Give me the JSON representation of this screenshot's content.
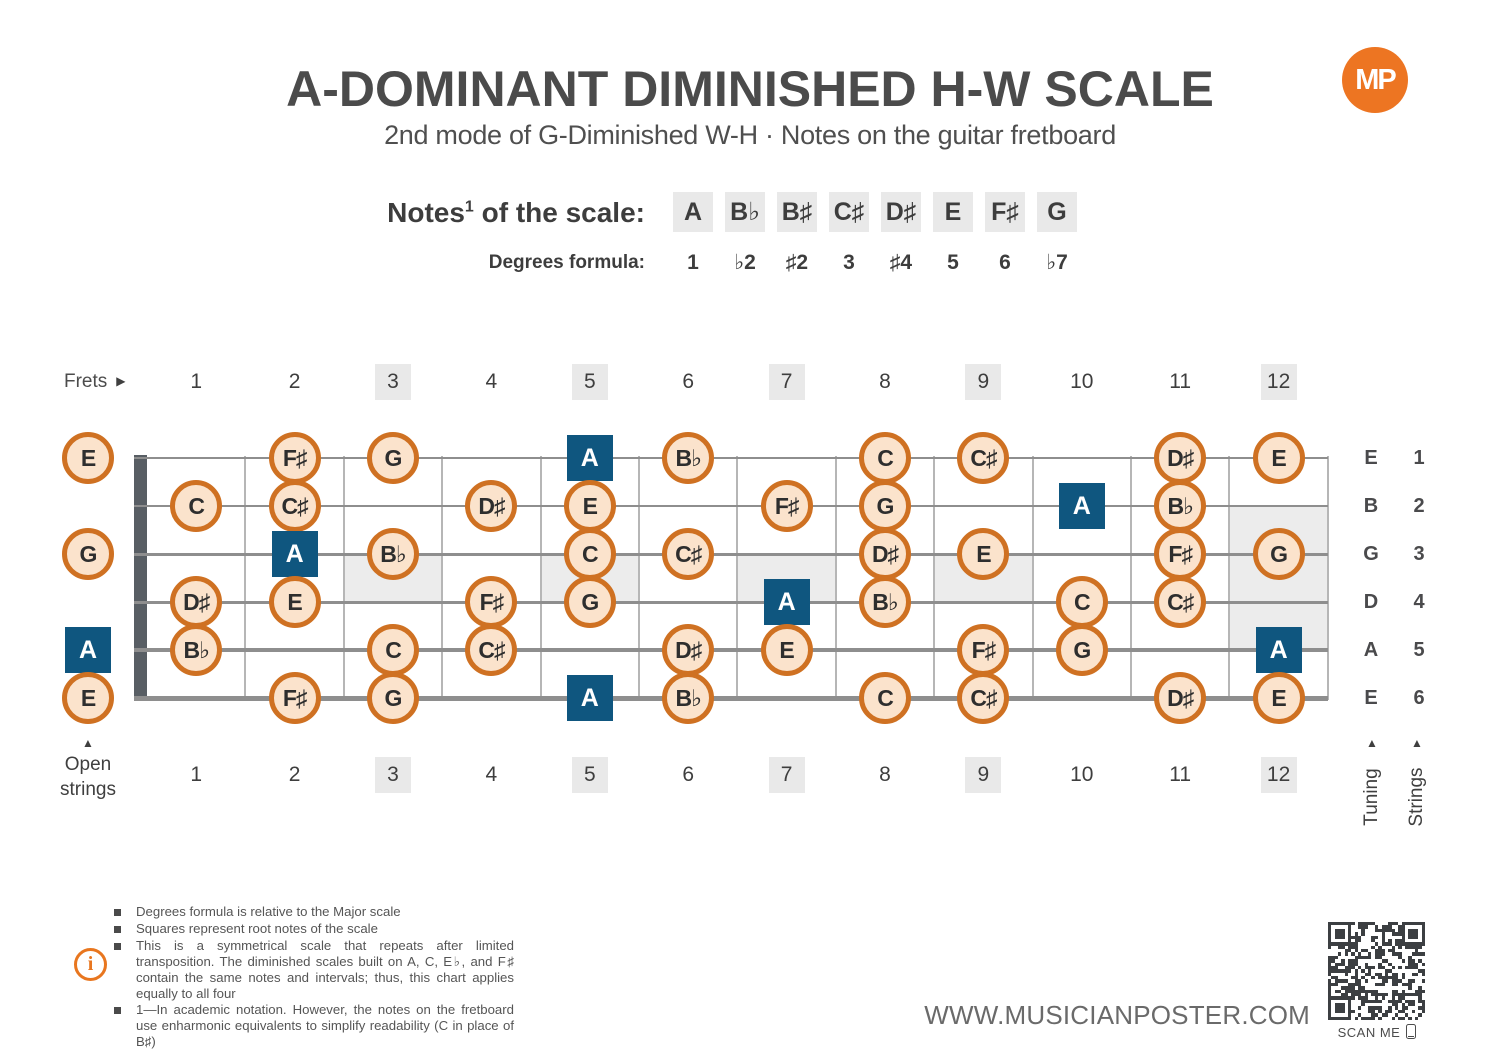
{
  "colors": {
    "accent_orange": "#ed7522",
    "note_circle_border": "#cf7122",
    "note_circle_fill": "#fbe3cc",
    "root_square_blue": "#0f567f",
    "marker_box_gray": "#e9e9e9",
    "inlay_gray": "#ececec",
    "text_dark": "#4b4b4b"
  },
  "header": {
    "title": "A-DOMINANT DIMINISHED H-W SCALE",
    "subtitle": "2nd mode of G-Diminished W-H · Notes on the guitar fretboard",
    "logo_text": "MP"
  },
  "scale": {
    "notes_label_pre": "Notes",
    "notes_label_sup": "1",
    "notes_label_post": " of the scale:",
    "degrees_label": "Degrees formula:",
    "notes": [
      "A",
      "B♭",
      "B♯",
      "C♯",
      "D♯",
      "E",
      "F♯",
      "G"
    ],
    "degrees": [
      "1",
      "♭2",
      "♯2",
      "3",
      "♯4",
      "5",
      "6",
      "♭7"
    ]
  },
  "fretboard": {
    "frets_label": "Frets",
    "fret_numbers": [
      "1",
      "2",
      "3",
      "4",
      "5",
      "6",
      "7",
      "8",
      "9",
      "10",
      "11",
      "12"
    ],
    "marker_frets": [
      3,
      5,
      7,
      9,
      12
    ],
    "inlay_frets_single": [
      3,
      5,
      7,
      9
    ],
    "inlay_fret_double": 12,
    "open_label_line1": "Open",
    "open_label_line2": "strings",
    "tuning_label": "Tuning",
    "strings_label": "Strings",
    "strings": [
      {
        "tuning": "E",
        "number": "1"
      },
      {
        "tuning": "B",
        "number": "2"
      },
      {
        "tuning": "G",
        "number": "3"
      },
      {
        "tuning": "D",
        "number": "4"
      },
      {
        "tuning": "A",
        "number": "5"
      },
      {
        "tuning": "E",
        "number": "6"
      }
    ],
    "notes": [
      {
        "string": 1,
        "fret": 0,
        "label": "E",
        "root": false
      },
      {
        "string": 1,
        "fret": 2,
        "label": "F♯",
        "root": false
      },
      {
        "string": 1,
        "fret": 3,
        "label": "G",
        "root": false
      },
      {
        "string": 1,
        "fret": 5,
        "label": "A",
        "root": true
      },
      {
        "string": 1,
        "fret": 6,
        "label": "B♭",
        "root": false
      },
      {
        "string": 1,
        "fret": 8,
        "label": "C",
        "root": false
      },
      {
        "string": 1,
        "fret": 9,
        "label": "C♯",
        "root": false
      },
      {
        "string": 1,
        "fret": 11,
        "label": "D♯",
        "root": false
      },
      {
        "string": 1,
        "fret": 12,
        "label": "E",
        "root": false
      },
      {
        "string": 2,
        "fret": 1,
        "label": "C",
        "root": false
      },
      {
        "string": 2,
        "fret": 2,
        "label": "C♯",
        "root": false
      },
      {
        "string": 2,
        "fret": 4,
        "label": "D♯",
        "root": false
      },
      {
        "string": 2,
        "fret": 5,
        "label": "E",
        "root": false
      },
      {
        "string": 2,
        "fret": 7,
        "label": "F♯",
        "root": false
      },
      {
        "string": 2,
        "fret": 8,
        "label": "G",
        "root": false
      },
      {
        "string": 2,
        "fret": 10,
        "label": "A",
        "root": true
      },
      {
        "string": 2,
        "fret": 11,
        "label": "B♭",
        "root": false
      },
      {
        "string": 3,
        "fret": 0,
        "label": "G",
        "root": false
      },
      {
        "string": 3,
        "fret": 2,
        "label": "A",
        "root": true
      },
      {
        "string": 3,
        "fret": 3,
        "label": "B♭",
        "root": false
      },
      {
        "string": 3,
        "fret": 5,
        "label": "C",
        "root": false
      },
      {
        "string": 3,
        "fret": 6,
        "label": "C♯",
        "root": false
      },
      {
        "string": 3,
        "fret": 8,
        "label": "D♯",
        "root": false
      },
      {
        "string": 3,
        "fret": 9,
        "label": "E",
        "root": false
      },
      {
        "string": 3,
        "fret": 11,
        "label": "F♯",
        "root": false
      },
      {
        "string": 3,
        "fret": 12,
        "label": "G",
        "root": false
      },
      {
        "string": 4,
        "fret": 1,
        "label": "D♯",
        "root": false
      },
      {
        "string": 4,
        "fret": 2,
        "label": "E",
        "root": false
      },
      {
        "string": 4,
        "fret": 4,
        "label": "F♯",
        "root": false
      },
      {
        "string": 4,
        "fret": 5,
        "label": "G",
        "root": false
      },
      {
        "string": 4,
        "fret": 7,
        "label": "A",
        "root": true
      },
      {
        "string": 4,
        "fret": 8,
        "label": "B♭",
        "root": false
      },
      {
        "string": 4,
        "fret": 10,
        "label": "C",
        "root": false
      },
      {
        "string": 4,
        "fret": 11,
        "label": "C♯",
        "root": false
      },
      {
        "string": 5,
        "fret": 0,
        "label": "A",
        "root": true
      },
      {
        "string": 5,
        "fret": 1,
        "label": "B♭",
        "root": false
      },
      {
        "string": 5,
        "fret": 3,
        "label": "C",
        "root": false
      },
      {
        "string": 5,
        "fret": 4,
        "label": "C♯",
        "root": false
      },
      {
        "string": 5,
        "fret": 6,
        "label": "D♯",
        "root": false
      },
      {
        "string": 5,
        "fret": 7,
        "label": "E",
        "root": false
      },
      {
        "string": 5,
        "fret": 9,
        "label": "F♯",
        "root": false
      },
      {
        "string": 5,
        "fret": 10,
        "label": "G",
        "root": false
      },
      {
        "string": 5,
        "fret": 12,
        "label": "A",
        "root": true
      },
      {
        "string": 6,
        "fret": 0,
        "label": "E",
        "root": false
      },
      {
        "string": 6,
        "fret": 2,
        "label": "F♯",
        "root": false
      },
      {
        "string": 6,
        "fret": 3,
        "label": "G",
        "root": false
      },
      {
        "string": 6,
        "fret": 5,
        "label": "A",
        "root": true
      },
      {
        "string": 6,
        "fret": 6,
        "label": "B♭",
        "root": false
      },
      {
        "string": 6,
        "fret": 8,
        "label": "C",
        "root": false
      },
      {
        "string": 6,
        "fret": 9,
        "label": "C♯",
        "root": false
      },
      {
        "string": 6,
        "fret": 11,
        "label": "D♯",
        "root": false
      },
      {
        "string": 6,
        "fret": 12,
        "label": "E",
        "root": false
      }
    ]
  },
  "footer": {
    "info_icon": "i",
    "bullets": [
      "Degrees formula is relative to the Major scale",
      "Squares represent root notes of the scale",
      "This is a symmetrical scale that repeats after limited transposition. The diminished scales built on A, C, E♭, and F♯ contain the same notes and intervals; thus, this chart applies equally to all four",
      "1—In academic notation. However, the notes on the fretboard use enharmonic equivalents to simplify readability (C in place of B♯)"
    ],
    "website": "WWW.MUSICIANPOSTER.COM",
    "scan_me": "SCAN ME"
  }
}
